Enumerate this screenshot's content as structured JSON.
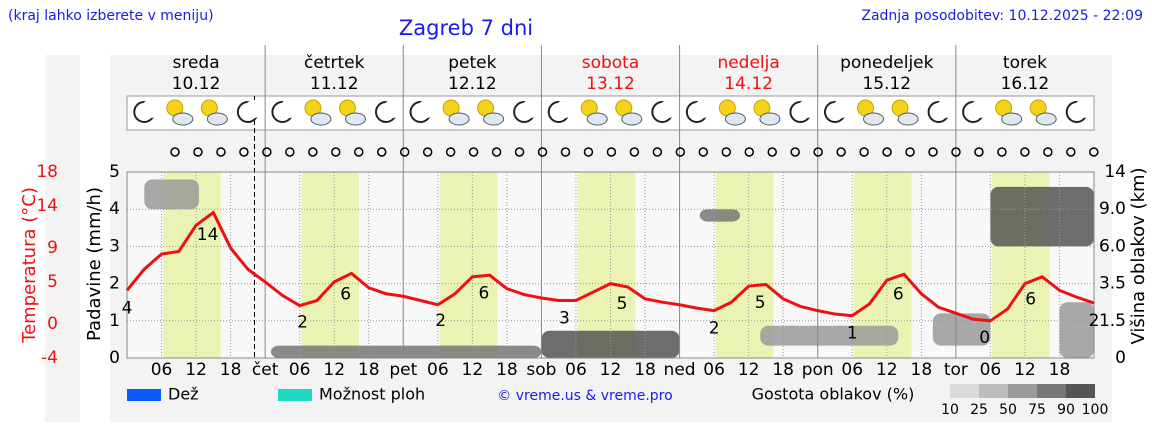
{
  "header": {
    "note": "(kraj lahko izberete v meniju)",
    "title": "Zagreb 7 dni",
    "updated": "Zadnja posodobitev: 10.12.2025 - 22:09"
  },
  "chart_data": {
    "type": "line",
    "days": [
      {
        "name": "sreda",
        "date": "10.12",
        "weekend": false
      },
      {
        "name": "četrtek",
        "date": "11.12",
        "weekend": false
      },
      {
        "name": "petek",
        "date": "12.12",
        "weekend": false
      },
      {
        "name": "sobota",
        "date": "13.12",
        "weekend": true
      },
      {
        "name": "nedelja",
        "date": "14.12",
        "weekend": true
      },
      {
        "name": "ponedeljek",
        "date": "15.12",
        "weekend": false
      },
      {
        "name": "torek",
        "date": "16.12",
        "weekend": false
      }
    ],
    "x": [
      0,
      3,
      6,
      9,
      12,
      15,
      18,
      21,
      24,
      27,
      30,
      33,
      36,
      39,
      42,
      45,
      48,
      51,
      54,
      57,
      60,
      63,
      66,
      69,
      72,
      75,
      78,
      81,
      84,
      87,
      90,
      93,
      96,
      99,
      102,
      105,
      108,
      111,
      114,
      117,
      120,
      123,
      126,
      129,
      132,
      135,
      138,
      141,
      144,
      147,
      150,
      153,
      156,
      159,
      162,
      165,
      168
    ],
    "xlim": [
      0,
      168
    ],
    "xticks": [
      {
        "value": 6,
        "label": "06"
      },
      {
        "value": 12,
        "label": "12"
      },
      {
        "value": 18,
        "label": "18"
      },
      {
        "value": 24,
        "label": "čet"
      },
      {
        "value": 30,
        "label": "06"
      },
      {
        "value": 36,
        "label": "12"
      },
      {
        "value": 42,
        "label": "18"
      },
      {
        "value": 48,
        "label": "pet"
      },
      {
        "value": 54,
        "label": "06"
      },
      {
        "value": 60,
        "label": "12"
      },
      {
        "value": 66,
        "label": "18"
      },
      {
        "value": 72,
        "label": "sob"
      },
      {
        "value": 78,
        "label": "06"
      },
      {
        "value": 84,
        "label": "12"
      },
      {
        "value": 90,
        "label": "18"
      },
      {
        "value": 96,
        "label": "ned"
      },
      {
        "value": 102,
        "label": "06"
      },
      {
        "value": 108,
        "label": "12"
      },
      {
        "value": 114,
        "label": "18"
      },
      {
        "value": 120,
        "label": "pon"
      },
      {
        "value": 126,
        "label": "06"
      },
      {
        "value": 132,
        "label": "12"
      },
      {
        "value": 138,
        "label": "18"
      },
      {
        "value": 144,
        "label": "tor"
      },
      {
        "value": 150,
        "label": "06"
      },
      {
        "value": 156,
        "label": "12"
      },
      {
        "value": 162,
        "label": "18"
      }
    ],
    "daylight": [
      [
        6.3,
        16.3
      ],
      [
        30.3,
        40.3
      ],
      [
        54.3,
        64.3
      ],
      [
        78.3,
        88.3
      ],
      [
        102.3,
        112.3
      ],
      [
        126.3,
        136.3
      ],
      [
        150.3,
        160.3
      ]
    ],
    "now_line": 22.15,
    "series": [
      {
        "name": "Temperatura (°C)",
        "color": "#ee1111",
        "values": [
          4.0,
          6.5,
          8.3,
          8.6,
          11.7,
          13.2,
          9.0,
          6.5,
          5.0,
          3.4,
          2.2,
          2.8,
          5.0,
          6.0,
          4.3,
          3.6,
          3.3,
          2.8,
          2.3,
          3.6,
          5.6,
          5.8,
          4.2,
          3.5,
          3.1,
          2.8,
          2.8,
          3.8,
          4.8,
          4.4,
          3.0,
          2.6,
          2.3,
          1.9,
          1.6,
          2.6,
          4.5,
          4.7,
          3.0,
          2.1,
          1.6,
          1.2,
          1.0,
          2.4,
          5.2,
          5.9,
          3.6,
          2.0,
          1.3,
          0.6,
          0.4,
          1.8,
          4.8,
          5.6,
          4.0,
          3.2,
          2.5
        ]
      }
    ],
    "ylim": [
      -4,
      18
    ],
    "yticks": [
      18,
      14,
      9,
      5,
      0,
      -4
    ],
    "extremes": [
      {
        "x": 0,
        "value": 4
      },
      {
        "x": 14,
        "value": 14
      },
      {
        "x": 30.5,
        "value": 2
      },
      {
        "x": 38,
        "value": 6
      },
      {
        "x": 54.5,
        "value": 2
      },
      {
        "x": 62,
        "value": 6
      },
      {
        "x": 76,
        "value": 3
      },
      {
        "x": 86,
        "value": 5
      },
      {
        "x": 102,
        "value": 2
      },
      {
        "x": 110,
        "value": 5
      },
      {
        "x": 126,
        "value": 1
      },
      {
        "x": 134,
        "value": 6
      },
      {
        "x": 149,
        "value": 0
      },
      {
        "x": 157,
        "value": 6
      },
      {
        "x": 168,
        "value": 2
      }
    ],
    "precip": {
      "label": "Padavine (mm/h)",
      "ylim": [
        0,
        5
      ],
      "yticks": [
        0,
        1,
        2,
        3,
        4,
        5
      ]
    },
    "cloud": {
      "label": "Višina oblakov (km)",
      "y2ticks": [
        0,
        1.5,
        3.5,
        {
          "value": 6,
          "label": "6.0"
        },
        {
          "value": 9,
          "label": "9.0"
        },
        14
      ],
      "blocks": [
        {
          "x": [
            3,
            12.5
          ],
          "km": [
            9,
            13
          ],
          "density": 50
        },
        {
          "x": [
            25,
            72
          ],
          "km": [
            0,
            0.5
          ],
          "density": 75
        },
        {
          "x": [
            72,
            96
          ],
          "km": [
            0,
            1.1
          ],
          "density": 90
        },
        {
          "x": [
            99.5,
            106.5
          ],
          "km": [
            8,
            9
          ],
          "density": 75
        },
        {
          "x": [
            110,
            134
          ],
          "km": [
            0.5,
            1.3
          ],
          "density": 50
        },
        {
          "x": [
            140,
            150
          ],
          "km": [
            0.5,
            1.9
          ],
          "density": 50
        },
        {
          "x": [
            150,
            168
          ],
          "km": [
            6,
            12
          ],
          "density": 90
        },
        {
          "x": [
            162,
            168
          ],
          "km": [
            0,
            2.5
          ],
          "density": 50
        }
      ]
    },
    "legend": [
      {
        "name": "Dež",
        "color": "#0a5cff"
      },
      {
        "name": "Možnost ploh",
        "color": "#1ed8c4"
      }
    ],
    "credit": "© vreme.us & vreme.pro",
    "density_legend": {
      "title": "Gostota oblakov (%)",
      "ticks": [
        10,
        25,
        50,
        75,
        90,
        100
      ],
      "colors": [
        "#dadada",
        "#bdbdbd",
        "#9a9a9a",
        "#777777",
        "#555555"
      ]
    }
  }
}
